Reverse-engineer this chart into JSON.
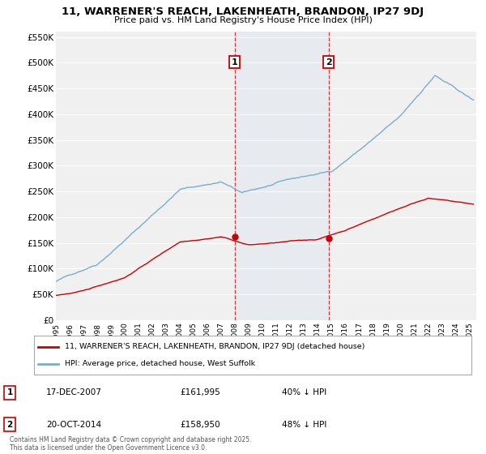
{
  "title": "11, WARRENER'S REACH, LAKENHEATH, BRANDON, IP27 9DJ",
  "subtitle": "Price paid vs. HM Land Registry's House Price Index (HPI)",
  "legend_line1": "11, WARRENER'S REACH, LAKENHEATH, BRANDON, IP27 9DJ (detached house)",
  "legend_line2": "HPI: Average price, detached house, West Suffolk",
  "marker1_date": "17-DEC-2007",
  "marker1_price": 161995,
  "marker1_note": "40% ↓ HPI",
  "marker2_date": "20-OCT-2014",
  "marker2_price": 158950,
  "marker2_note": "48% ↓ HPI",
  "sale_line_color": "#cc0000",
  "hpi_line_color": "#7aadcc",
  "marker_color": "#cc0000",
  "background_color": "#ffffff",
  "plot_bg_color": "#f0f0f0",
  "ylim": [
    0,
    560000
  ],
  "yticks": [
    0,
    50000,
    100000,
    150000,
    200000,
    250000,
    300000,
    350000,
    400000,
    450000,
    500000,
    550000
  ],
  "year_start": 1995,
  "year_end": 2025,
  "copyright_text": "Contains HM Land Registry data © Crown copyright and database right 2025.\nThis data is licensed under the Open Government Licence v3.0.",
  "sale1_year": 2007.96,
  "sale2_year": 2014.79
}
